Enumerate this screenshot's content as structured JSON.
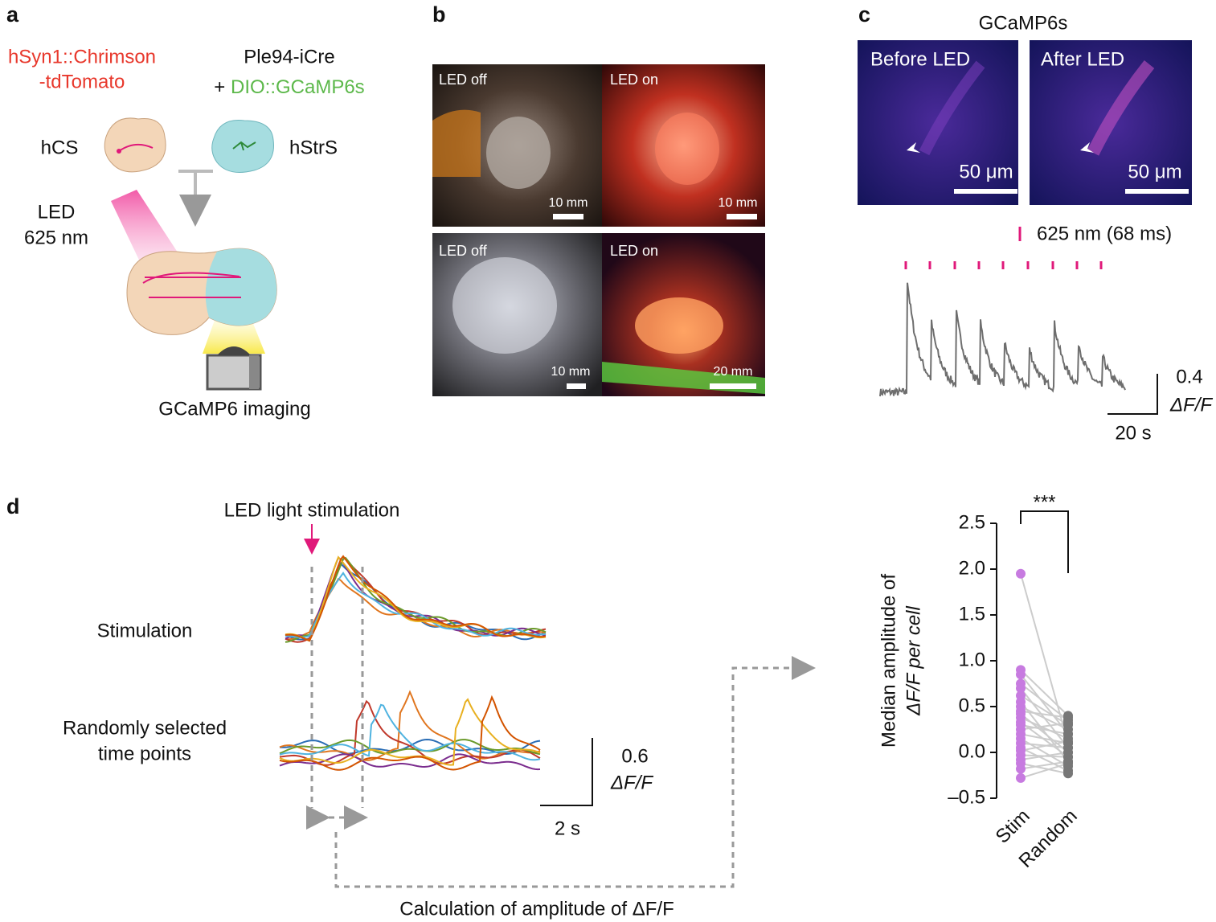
{
  "panel_labels": [
    "a",
    "b",
    "c",
    "d"
  ],
  "panel_a": {
    "construct_red": [
      "hSyn1::Chrimson",
      "-tdTomato"
    ],
    "construct_black": "Ple94-iCre",
    "plus": "+",
    "construct_green": "DIO::GCaMP6s",
    "left_organoid": "hCS",
    "right_organoid": "hStrS",
    "led": [
      "LED",
      "625 nm"
    ],
    "imaging": "GCaMP6 imaging"
  },
  "panel_b": {
    "photos": [
      {
        "label": "LED off",
        "scale": "10 mm"
      },
      {
        "label": "LED on",
        "scale": "10 mm"
      },
      {
        "label": "LED off",
        "scale": "10 mm"
      },
      {
        "label": "LED on",
        "scale": "20 mm"
      }
    ]
  },
  "panel_c": {
    "title": "GCaMP6s",
    "images": [
      {
        "label": "Before LED",
        "scale": "50 μm"
      },
      {
        "label": "After LED",
        "scale": "50 μm"
      }
    ],
    "stim_legend": "625 nm (68 ms)",
    "scale_y": [
      "0.4",
      "ΔF/F"
    ],
    "scale_x": "20 s"
  },
  "panel_d": {
    "arrow_label": "LED light stimulation",
    "row_stim": "Stimulation",
    "row_random": [
      "Randomly selected",
      "time points"
    ],
    "scale_y": [
      "0.6",
      "ΔF/F"
    ],
    "scale_x": "2 s",
    "calc_label": "Calculation of amplitude of ΔF/F"
  },
  "chart_data": {
    "type": "paired-strip",
    "ylabel": [
      "Median amplitude of",
      "ΔF/F per cell"
    ],
    "categories": [
      "Stim",
      "Random"
    ],
    "colors": [
      "#c77be0",
      "#777777"
    ],
    "annotation": "***",
    "ylim": [
      -0.5,
      2.5
    ],
    "yticks": [
      {
        "value": -0.5,
        "label": "–0.5"
      },
      {
        "value": 0,
        "label": "0.0"
      },
      0.5,
      {
        "value": 1,
        "label": "1.0"
      },
      1.5,
      {
        "value": 2,
        "label": "2.0"
      },
      2.5
    ],
    "values": [
      [
        1.95,
        0.9,
        0.85,
        0.75,
        0.7,
        0.62,
        0.55,
        0.5,
        0.45,
        0.42,
        0.38,
        0.33,
        0.3,
        0.25,
        0.2,
        0.15,
        0.1,
        0.05,
        0.02,
        -0.03,
        -0.08,
        -0.12,
        -0.18,
        -0.28
      ],
      [
        0.1,
        0.4,
        0.2,
        0.35,
        0.05,
        0.3,
        -0.1,
        0.25,
        0.38,
        0.0,
        0.15,
        -0.05,
        0.2,
        0.32,
        0.1,
        -0.15,
        0.05,
        -0.2,
        0.12,
        -0.05,
        0.0,
        -0.23,
        -0.1,
        -0.12
      ]
    ]
  }
}
